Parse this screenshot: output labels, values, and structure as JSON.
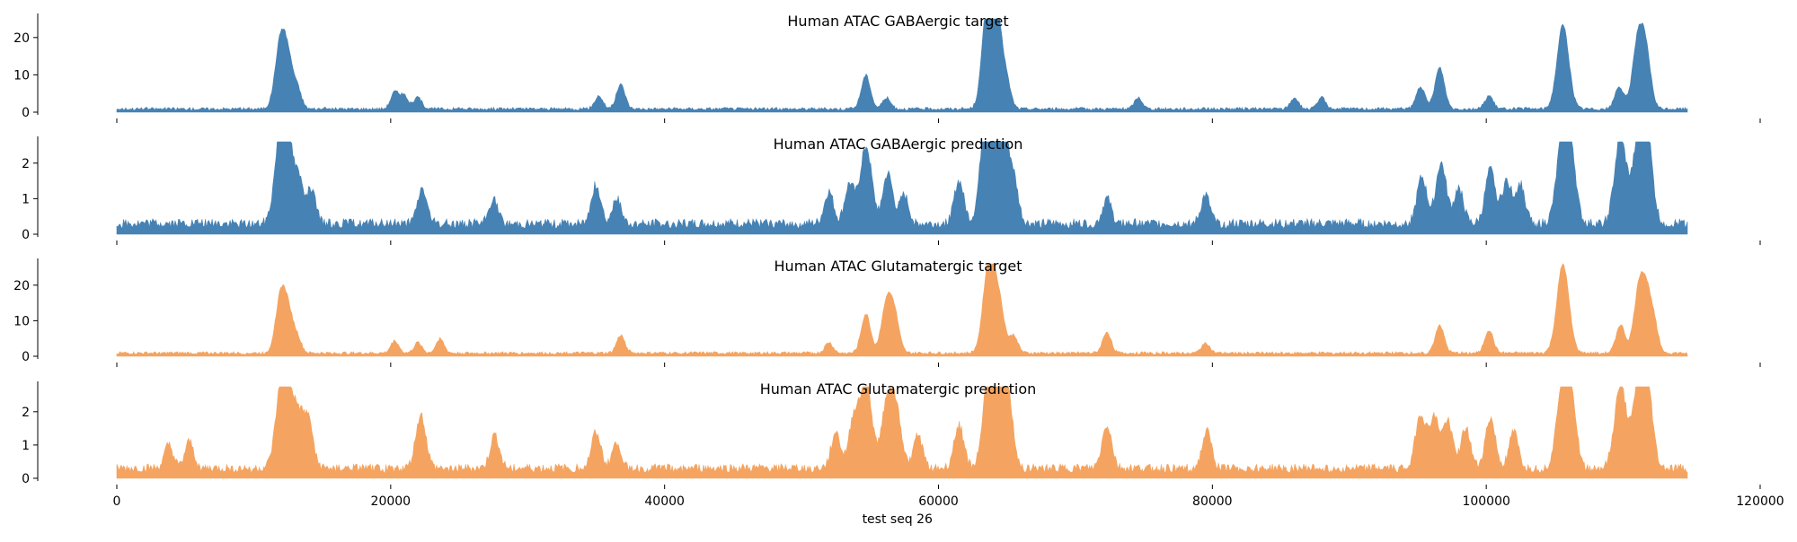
{
  "chart_data": {
    "type": "area",
    "xlabel": "test seq 26",
    "xlim": [
      0,
      120000
    ],
    "x_ticks": [
      0,
      20000,
      40000,
      60000,
      80000,
      100000,
      120000
    ],
    "x_tick_labels": [
      "0",
      "20000",
      "40000",
      "60000",
      "80000",
      "100000",
      "120000"
    ],
    "data_x_range": [
      0,
      114688
    ],
    "panels": [
      {
        "title": "Human ATAC GABAergic target",
        "color": "#4682b4",
        "ylim": [
          0,
          25
        ],
        "y_ticks": [
          0,
          10,
          20
        ],
        "y_tick_labels": [
          "0",
          "10",
          "20"
        ],
        "baseline": 0.9,
        "peaks": [
          {
            "x": 12000,
            "y": 19.5
          },
          {
            "x": 12600,
            "y": 8.5
          },
          {
            "x": 13200,
            "y": 5
          },
          {
            "x": 20300,
            "y": 4.5
          },
          {
            "x": 21000,
            "y": 3.5
          },
          {
            "x": 22000,
            "y": 3
          },
          {
            "x": 35200,
            "y": 3.5
          },
          {
            "x": 36800,
            "y": 6.5
          },
          {
            "x": 54700,
            "y": 9
          },
          {
            "x": 56200,
            "y": 3
          },
          {
            "x": 63500,
            "y": 15
          },
          {
            "x": 63900,
            "y": 24
          },
          {
            "x": 64400,
            "y": 12.5
          },
          {
            "x": 65000,
            "y": 6
          },
          {
            "x": 74600,
            "y": 3
          },
          {
            "x": 86000,
            "y": 3
          },
          {
            "x": 88000,
            "y": 3
          },
          {
            "x": 95200,
            "y": 6
          },
          {
            "x": 96600,
            "y": 11
          },
          {
            "x": 100200,
            "y": 3.5
          },
          {
            "x": 105600,
            "y": 22.5
          },
          {
            "x": 109700,
            "y": 6
          },
          {
            "x": 111100,
            "y": 19
          },
          {
            "x": 111700,
            "y": 12
          }
        ]
      },
      {
        "title": "Human ATAC GABAergic prediction",
        "color": "#4682b4",
        "ylim": [
          0,
          2.6
        ],
        "y_ticks": [
          0,
          1,
          2
        ],
        "y_tick_labels": [
          "0",
          "1",
          "2"
        ],
        "baseline": 0.3,
        "peaks": [
          {
            "x": 12000,
            "y": 2.6
          },
          {
            "x": 12500,
            "y": 1.6
          },
          {
            "x": 13300,
            "y": 1.2
          },
          {
            "x": 14200,
            "y": 0.9
          },
          {
            "x": 22300,
            "y": 1.0
          },
          {
            "x": 27500,
            "y": 0.7
          },
          {
            "x": 35000,
            "y": 1.1
          },
          {
            "x": 36500,
            "y": 0.7
          },
          {
            "x": 52000,
            "y": 0.9
          },
          {
            "x": 53500,
            "y": 1.1
          },
          {
            "x": 54700,
            "y": 2.2
          },
          {
            "x": 56300,
            "y": 1.4
          },
          {
            "x": 57500,
            "y": 0.8
          },
          {
            "x": 61500,
            "y": 1.2
          },
          {
            "x": 63500,
            "y": 2.5
          },
          {
            "x": 64000,
            "y": 2.7
          },
          {
            "x": 64700,
            "y": 2.3
          },
          {
            "x": 65500,
            "y": 1.1
          },
          {
            "x": 72300,
            "y": 0.7
          },
          {
            "x": 79500,
            "y": 0.8
          },
          {
            "x": 95300,
            "y": 1.3
          },
          {
            "x": 96700,
            "y": 1.7
          },
          {
            "x": 98000,
            "y": 1.0
          },
          {
            "x": 100300,
            "y": 1.5
          },
          {
            "x": 101500,
            "y": 1.2
          },
          {
            "x": 102500,
            "y": 1.1
          },
          {
            "x": 105600,
            "y": 2.5
          },
          {
            "x": 106200,
            "y": 1.6
          },
          {
            "x": 109800,
            "y": 2.4
          },
          {
            "x": 111200,
            "y": 2.6
          },
          {
            "x": 111800,
            "y": 1.8
          }
        ]
      },
      {
        "title": "Human ATAC Glutamatergic target",
        "color": "#f4a460",
        "ylim": [
          0,
          26
        ],
        "y_ticks": [
          0,
          10,
          20
        ],
        "y_tick_labels": [
          "0",
          "10",
          "20"
        ],
        "baseline": 0.9,
        "peaks": [
          {
            "x": 12000,
            "y": 17
          },
          {
            "x": 12600,
            "y": 8.5
          },
          {
            "x": 13200,
            "y": 4
          },
          {
            "x": 20300,
            "y": 3.5
          },
          {
            "x": 22000,
            "y": 3
          },
          {
            "x": 23600,
            "y": 4
          },
          {
            "x": 36800,
            "y": 5
          },
          {
            "x": 52000,
            "y": 3
          },
          {
            "x": 54700,
            "y": 11
          },
          {
            "x": 56200,
            "y": 14
          },
          {
            "x": 56800,
            "y": 10
          },
          {
            "x": 63500,
            "y": 15
          },
          {
            "x": 64000,
            "y": 19
          },
          {
            "x": 64600,
            "y": 8
          },
          {
            "x": 65500,
            "y": 5
          },
          {
            "x": 72300,
            "y": 6
          },
          {
            "x": 79500,
            "y": 3
          },
          {
            "x": 96600,
            "y": 8
          },
          {
            "x": 100200,
            "y": 6.5
          },
          {
            "x": 105600,
            "y": 25
          },
          {
            "x": 109800,
            "y": 8
          },
          {
            "x": 111200,
            "y": 19
          },
          {
            "x": 111800,
            "y": 12
          },
          {
            "x": 112300,
            "y": 6
          }
        ]
      },
      {
        "title": "Human ATAC Glutamatergic prediction",
        "color": "#f4a460",
        "ylim": [
          0,
          2.75
        ],
        "y_ticks": [
          0,
          1,
          2
        ],
        "y_tick_labels": [
          "0",
          "1",
          "2"
        ],
        "baseline": 0.3,
        "peaks": [
          {
            "x": 3800,
            "y": 0.7
          },
          {
            "x": 5300,
            "y": 0.8
          },
          {
            "x": 12000,
            "y": 2.3
          },
          {
            "x": 12600,
            "y": 1.8
          },
          {
            "x": 13300,
            "y": 1.3
          },
          {
            "x": 14000,
            "y": 1.4
          },
          {
            "x": 22200,
            "y": 1.6
          },
          {
            "x": 27600,
            "y": 1.0
          },
          {
            "x": 35000,
            "y": 1.1
          },
          {
            "x": 36500,
            "y": 0.8
          },
          {
            "x": 52500,
            "y": 1.1
          },
          {
            "x": 53800,
            "y": 1.4
          },
          {
            "x": 54700,
            "y": 2.6
          },
          {
            "x": 56300,
            "y": 2.2
          },
          {
            "x": 57000,
            "y": 1.4
          },
          {
            "x": 58500,
            "y": 1.0
          },
          {
            "x": 61500,
            "y": 1.3
          },
          {
            "x": 63700,
            "y": 2.6
          },
          {
            "x": 64300,
            "y": 2.7
          },
          {
            "x": 65000,
            "y": 2.2
          },
          {
            "x": 72300,
            "y": 1.3
          },
          {
            "x": 79600,
            "y": 1.1
          },
          {
            "x": 95200,
            "y": 1.6
          },
          {
            "x": 96200,
            "y": 1.5
          },
          {
            "x": 97200,
            "y": 1.4
          },
          {
            "x": 98500,
            "y": 1.2
          },
          {
            "x": 100300,
            "y": 1.5
          },
          {
            "x": 102000,
            "y": 1.1
          },
          {
            "x": 105600,
            "y": 2.6
          },
          {
            "x": 106200,
            "y": 1.8
          },
          {
            "x": 109800,
            "y": 2.5
          },
          {
            "x": 111200,
            "y": 2.7
          },
          {
            "x": 111800,
            "y": 1.9
          }
        ]
      }
    ]
  }
}
